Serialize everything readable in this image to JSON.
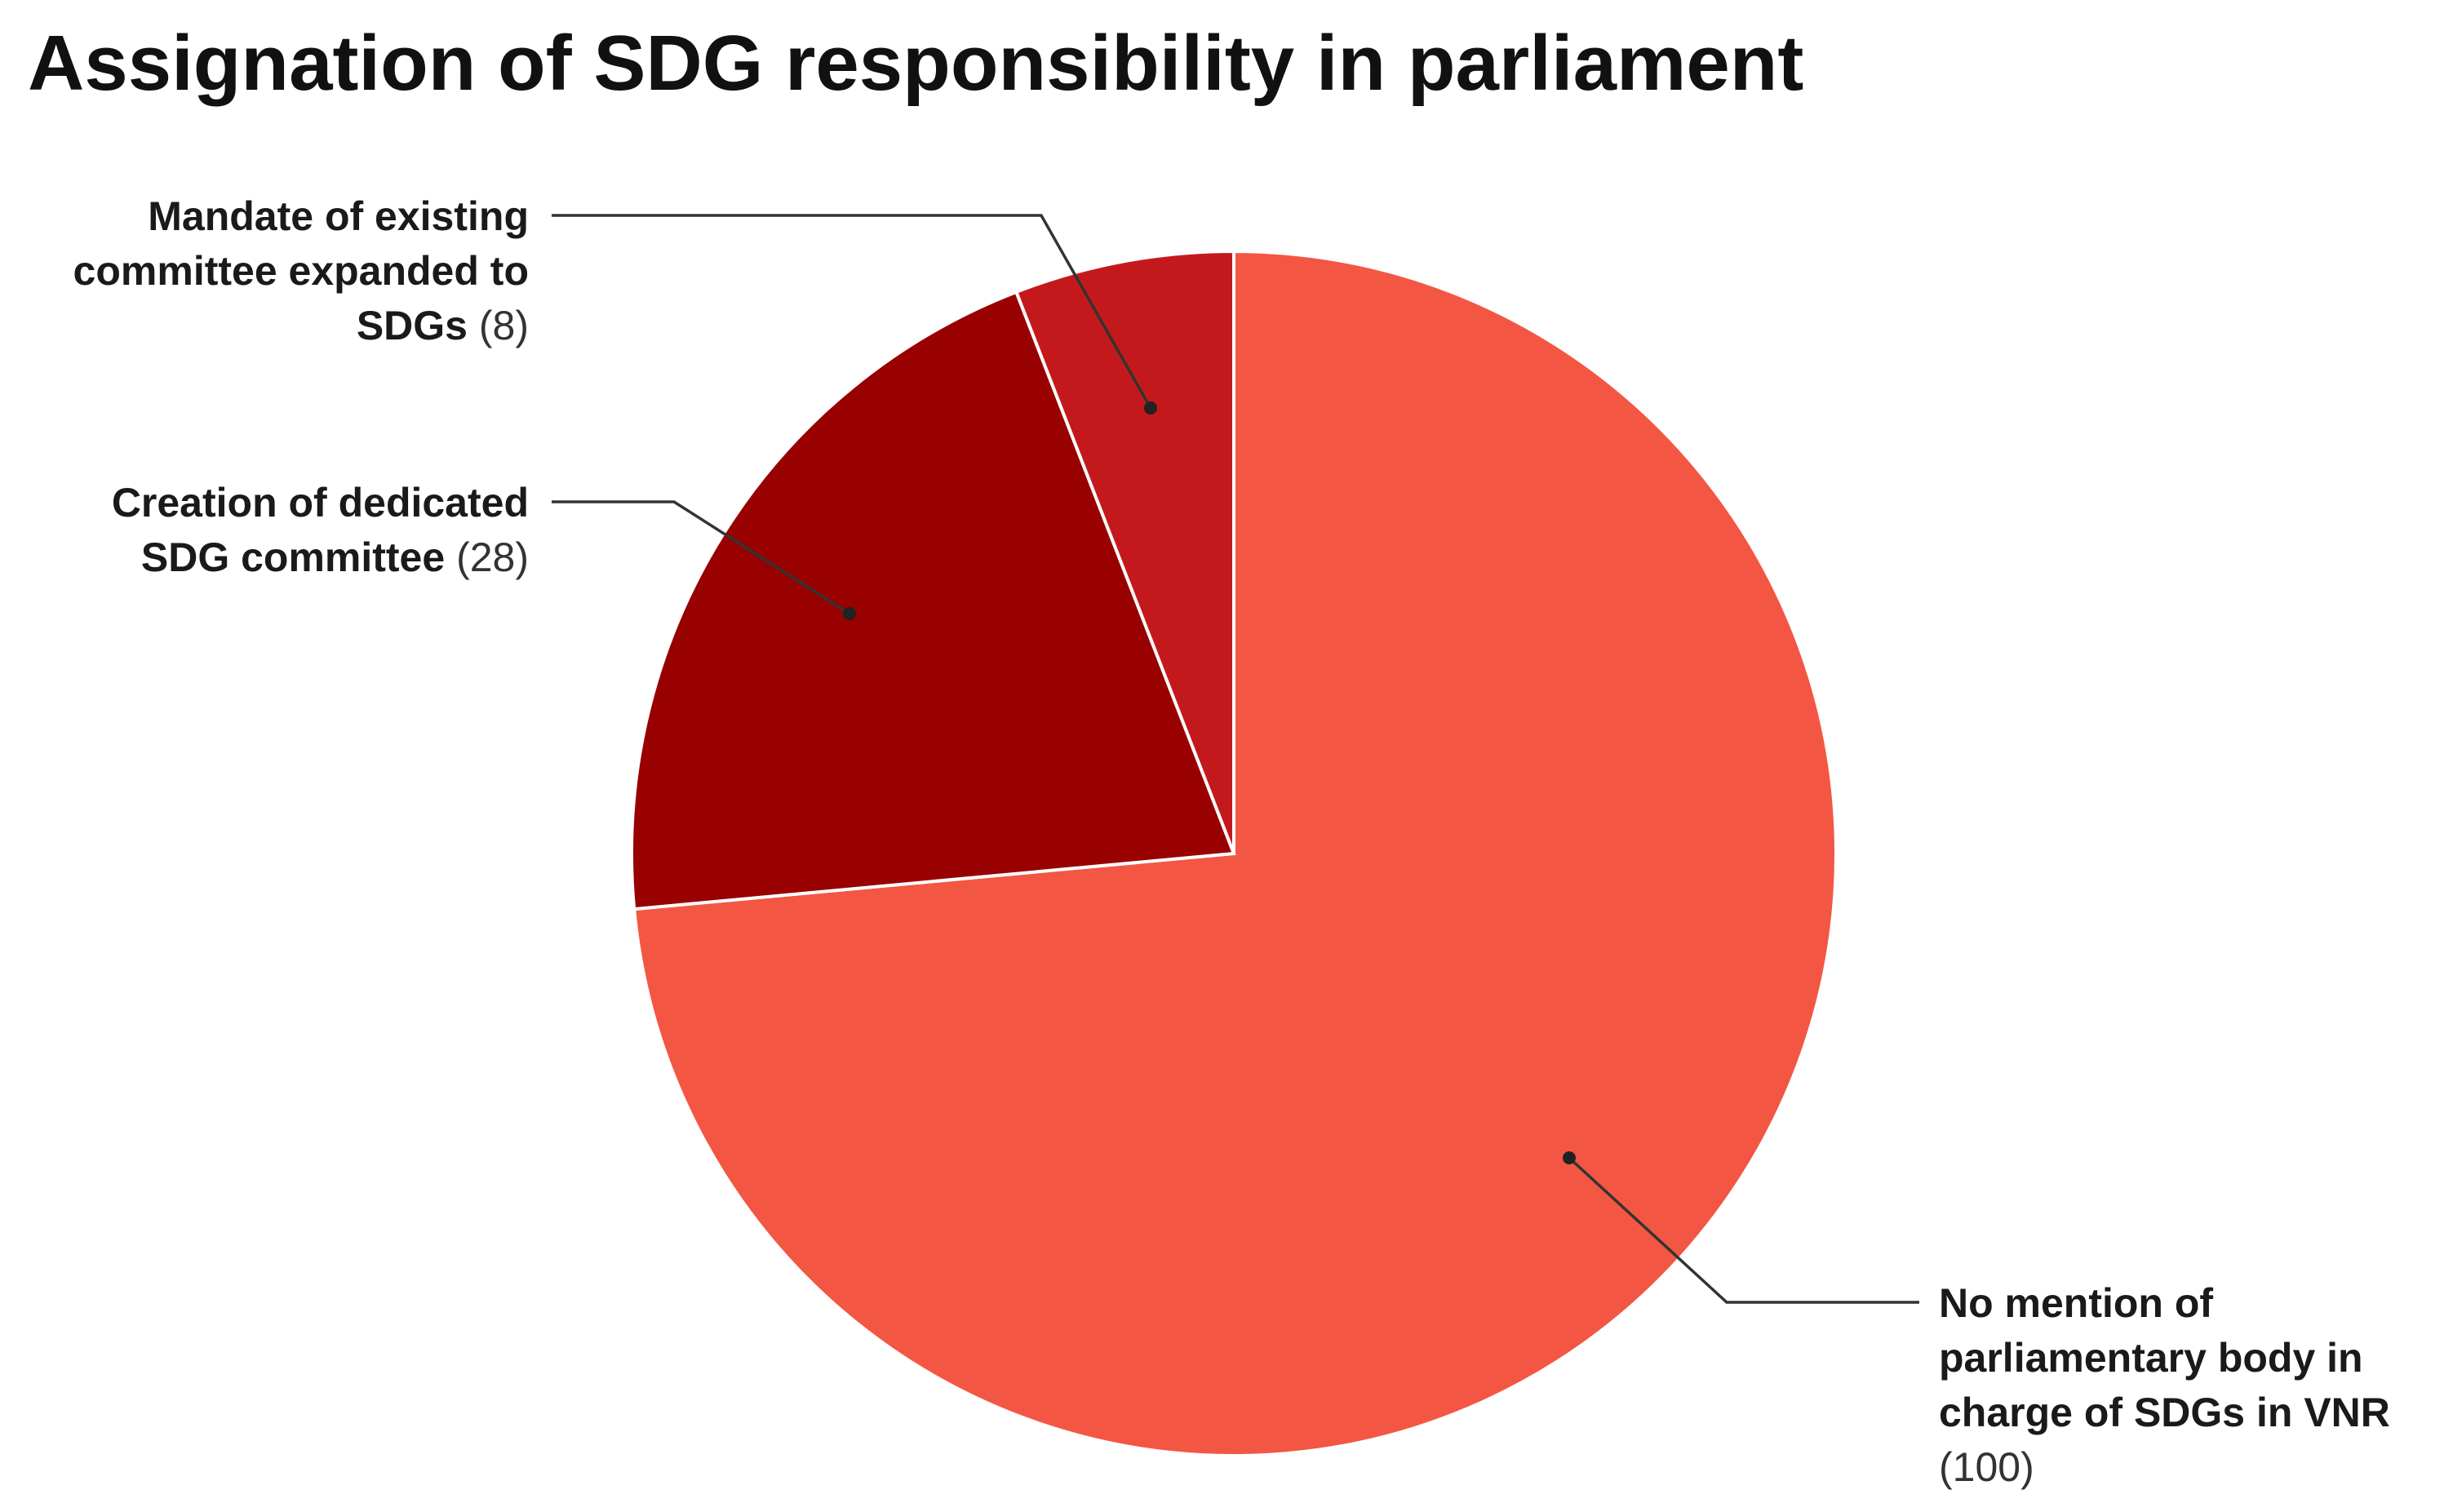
{
  "chart_data": {
    "type": "pie",
    "title": "Assignation of SDG responsibility in parliament",
    "slices": [
      {
        "label_lines": [
          "No mention of",
          "parliamentary body in",
          "charge of SDGs in VNR"
        ],
        "value_text": "(100)",
        "value": 100,
        "color": "#f45644"
      },
      {
        "label_lines": [
          "Creation of dedicated",
          "SDG committee"
        ],
        "value_text": "(28)",
        "value": 28,
        "color": "#990000"
      },
      {
        "label_lines": [
          "Mandate of existing",
          "committee expanded to",
          "SDGs"
        ],
        "value_text": "(8)",
        "value": 8,
        "color": "#c4191c"
      }
    ],
    "start_angle": "12 o'clock",
    "direction": "clockwise",
    "legend": "none (callout labels)"
  }
}
